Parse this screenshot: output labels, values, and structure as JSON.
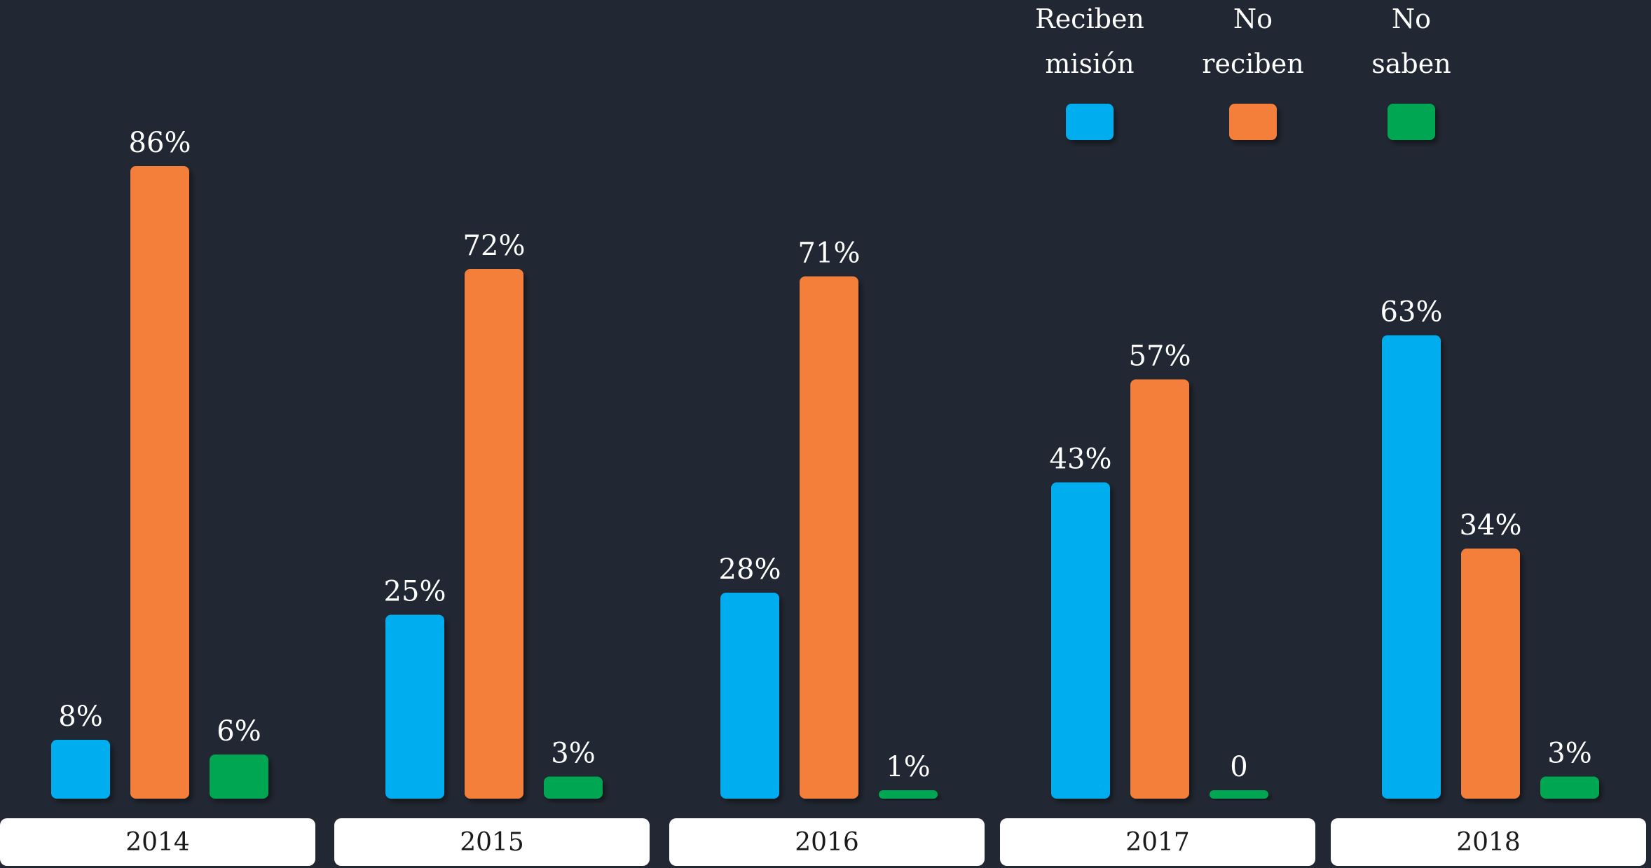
{
  "chart_data": {
    "type": "bar",
    "categories": [
      "2014",
      "2015",
      "2016",
      "2017",
      "2018"
    ],
    "series": [
      {
        "name": "Reciben misión",
        "name_lines": [
          "Reciben",
          "misión"
        ],
        "color": "#00aeef",
        "values": [
          8,
          25,
          28,
          43,
          63
        ],
        "labels": [
          "8%",
          "25%",
          "28%",
          "43%",
          "63%"
        ]
      },
      {
        "name": "No reciben",
        "name_lines": [
          "No",
          "reciben"
        ],
        "color": "#f47f3b",
        "values": [
          86,
          72,
          71,
          57,
          34
        ],
        "labels": [
          "86%",
          "72%",
          "71%",
          "57%",
          "34%"
        ]
      },
      {
        "name": "No saben",
        "name_lines": [
          "No",
          "saben"
        ],
        "color": "#00a651",
        "values": [
          6,
          3,
          1,
          0,
          3
        ],
        "labels": [
          "6%",
          "3%",
          "1%",
          "0",
          "3%"
        ]
      }
    ],
    "ylim": [
      0,
      100
    ],
    "grid": false,
    "legend_position": "top-right",
    "background": "#222833",
    "category_box_color": "#ffffff"
  }
}
